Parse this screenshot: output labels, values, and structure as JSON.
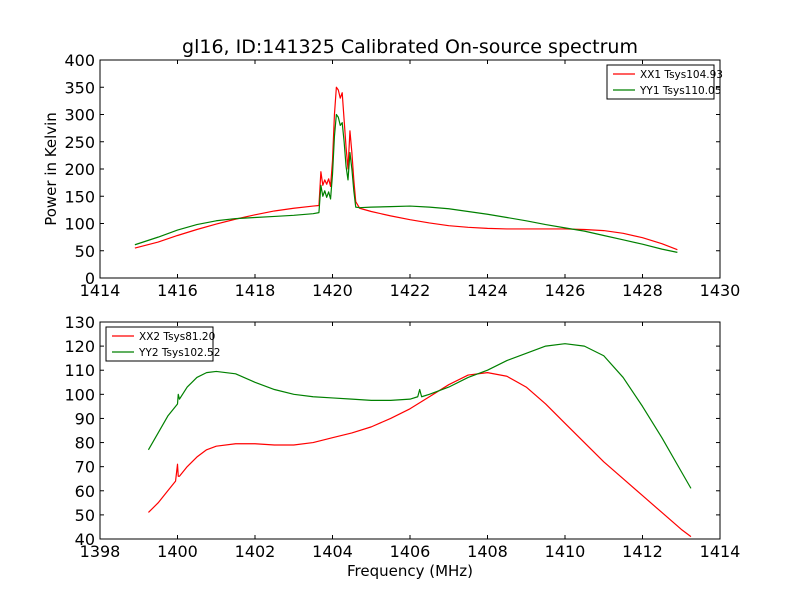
{
  "figure_title": "gl16, ID:141325 Calibrated On-source spectrum",
  "chart_data": [
    {
      "type": "line",
      "title": "gl16, ID:141325 Calibrated On-source spectrum",
      "xlabel": "",
      "ylabel": "Power in Kelvin",
      "xlim": [
        1414,
        1430
      ],
      "ylim": [
        0,
        400
      ],
      "xticks": [
        1414,
        1416,
        1418,
        1420,
        1422,
        1424,
        1426,
        1428,
        1430
      ],
      "yticks": [
        0,
        50,
        100,
        150,
        200,
        250,
        300,
        350,
        400
      ],
      "legend_position": "top-right",
      "series": [
        {
          "name": "XX1 Tsys104.93",
          "color": "#ff0000",
          "x": [
            1414.9,
            1415.5,
            1416.0,
            1416.5,
            1417.0,
            1417.5,
            1418.0,
            1418.5,
            1419.0,
            1419.5,
            1419.65,
            1419.7,
            1419.75,
            1419.8,
            1419.85,
            1419.9,
            1419.95,
            1420.0,
            1420.05,
            1420.1,
            1420.15,
            1420.2,
            1420.25,
            1420.3,
            1420.35,
            1420.4,
            1420.45,
            1420.5,
            1420.55,
            1420.6,
            1420.7,
            1421.0,
            1421.5,
            1422.0,
            1422.5,
            1423.0,
            1423.5,
            1424.0,
            1424.5,
            1425.0,
            1425.5,
            1426.0,
            1426.5,
            1427.0,
            1427.5,
            1428.0,
            1428.5,
            1428.9
          ],
          "y": [
            55,
            66,
            78,
            89,
            99,
            108,
            116,
            123,
            128,
            132,
            133,
            195,
            170,
            180,
            172,
            182,
            168,
            215,
            300,
            350,
            345,
            330,
            340,
            290,
            240,
            200,
            270,
            230,
            180,
            140,
            128,
            122,
            114,
            107,
            101,
            96,
            93,
            91,
            90,
            90,
            90,
            90,
            89,
            87,
            82,
            74,
            63,
            52
          ]
        },
        {
          "name": "YY1 Tsys110.05",
          "color": "#008000",
          "x": [
            1414.9,
            1415.5,
            1416.0,
            1416.5,
            1417.0,
            1417.5,
            1418.0,
            1418.5,
            1419.0,
            1419.5,
            1419.65,
            1419.7,
            1419.75,
            1419.8,
            1419.85,
            1419.9,
            1419.95,
            1420.0,
            1420.05,
            1420.1,
            1420.15,
            1420.2,
            1420.25,
            1420.3,
            1420.35,
            1420.4,
            1420.45,
            1420.5,
            1420.55,
            1420.6,
            1420.7,
            1421.0,
            1421.5,
            1422.0,
            1422.5,
            1423.0,
            1423.5,
            1424.0,
            1424.5,
            1425.0,
            1425.5,
            1426.0,
            1426.5,
            1427.0,
            1427.5,
            1428.0,
            1428.5,
            1428.9
          ],
          "y": [
            61,
            75,
            88,
            98,
            105,
            109,
            111,
            113,
            115,
            118,
            120,
            170,
            150,
            160,
            148,
            158,
            145,
            190,
            260,
            300,
            295,
            280,
            285,
            250,
            205,
            180,
            230,
            200,
            160,
            130,
            129,
            130,
            131,
            132,
            130,
            127,
            122,
            117,
            111,
            105,
            98,
            92,
            86,
            78,
            70,
            62,
            53,
            47
          ]
        }
      ]
    },
    {
      "type": "line",
      "title": "",
      "xlabel": "Frequency (MHz)",
      "ylabel": "",
      "xlim": [
        1398,
        1414
      ],
      "ylim": [
        40,
        130
      ],
      "xticks": [
        1398,
        1400,
        1402,
        1404,
        1406,
        1408,
        1410,
        1412,
        1414
      ],
      "yticks": [
        40,
        50,
        60,
        70,
        80,
        90,
        100,
        110,
        120,
        130
      ],
      "legend_position": "top-left",
      "series": [
        {
          "name": "XX2 Tsys81.20",
          "color": "#ff0000",
          "x": [
            1399.25,
            1399.5,
            1399.75,
            1399.95,
            1400.0,
            1400.02,
            1400.05,
            1400.25,
            1400.5,
            1400.75,
            1401.0,
            1401.5,
            1402.0,
            1402.5,
            1403.0,
            1403.5,
            1404.0,
            1404.5,
            1405.0,
            1405.5,
            1406.0,
            1406.5,
            1407.0,
            1407.5,
            1408.0,
            1408.5,
            1409.0,
            1409.5,
            1410.0,
            1410.5,
            1411.0,
            1411.5,
            1412.0,
            1412.5,
            1413.0,
            1413.25
          ],
          "y": [
            51,
            55,
            60,
            64,
            71,
            66,
            66,
            70,
            74,
            77,
            78.5,
            79.5,
            79.5,
            79,
            79,
            80,
            82,
            84,
            86.5,
            90,
            94,
            99,
            104,
            108,
            109,
            107.5,
            103,
            96,
            88,
            80,
            72,
            65,
            58,
            51,
            44,
            41
          ]
        },
        {
          "name": "YY2 Tsys102.52",
          "color": "#008000",
          "x": [
            1399.25,
            1399.5,
            1399.75,
            1400.0,
            1400.02,
            1400.05,
            1400.25,
            1400.5,
            1400.75,
            1401.0,
            1401.5,
            1402.0,
            1402.5,
            1403.0,
            1403.5,
            1404.0,
            1404.5,
            1405.0,
            1405.5,
            1406.0,
            1406.2,
            1406.25,
            1406.3,
            1406.5,
            1407.0,
            1407.5,
            1408.0,
            1408.5,
            1409.0,
            1409.5,
            1410.0,
            1410.5,
            1411.0,
            1411.5,
            1412.0,
            1412.5,
            1413.0,
            1413.25
          ],
          "y": [
            77,
            84,
            91,
            96,
            100,
            98,
            103,
            107,
            109,
            109.5,
            108.5,
            105,
            102,
            100,
            99,
            98.5,
            98,
            97.5,
            97.5,
            98,
            99,
            102,
            99,
            100,
            103,
            107,
            110,
            114,
            117,
            120,
            121,
            120,
            116,
            107,
            95,
            82,
            68,
            61
          ]
        }
      ]
    }
  ]
}
